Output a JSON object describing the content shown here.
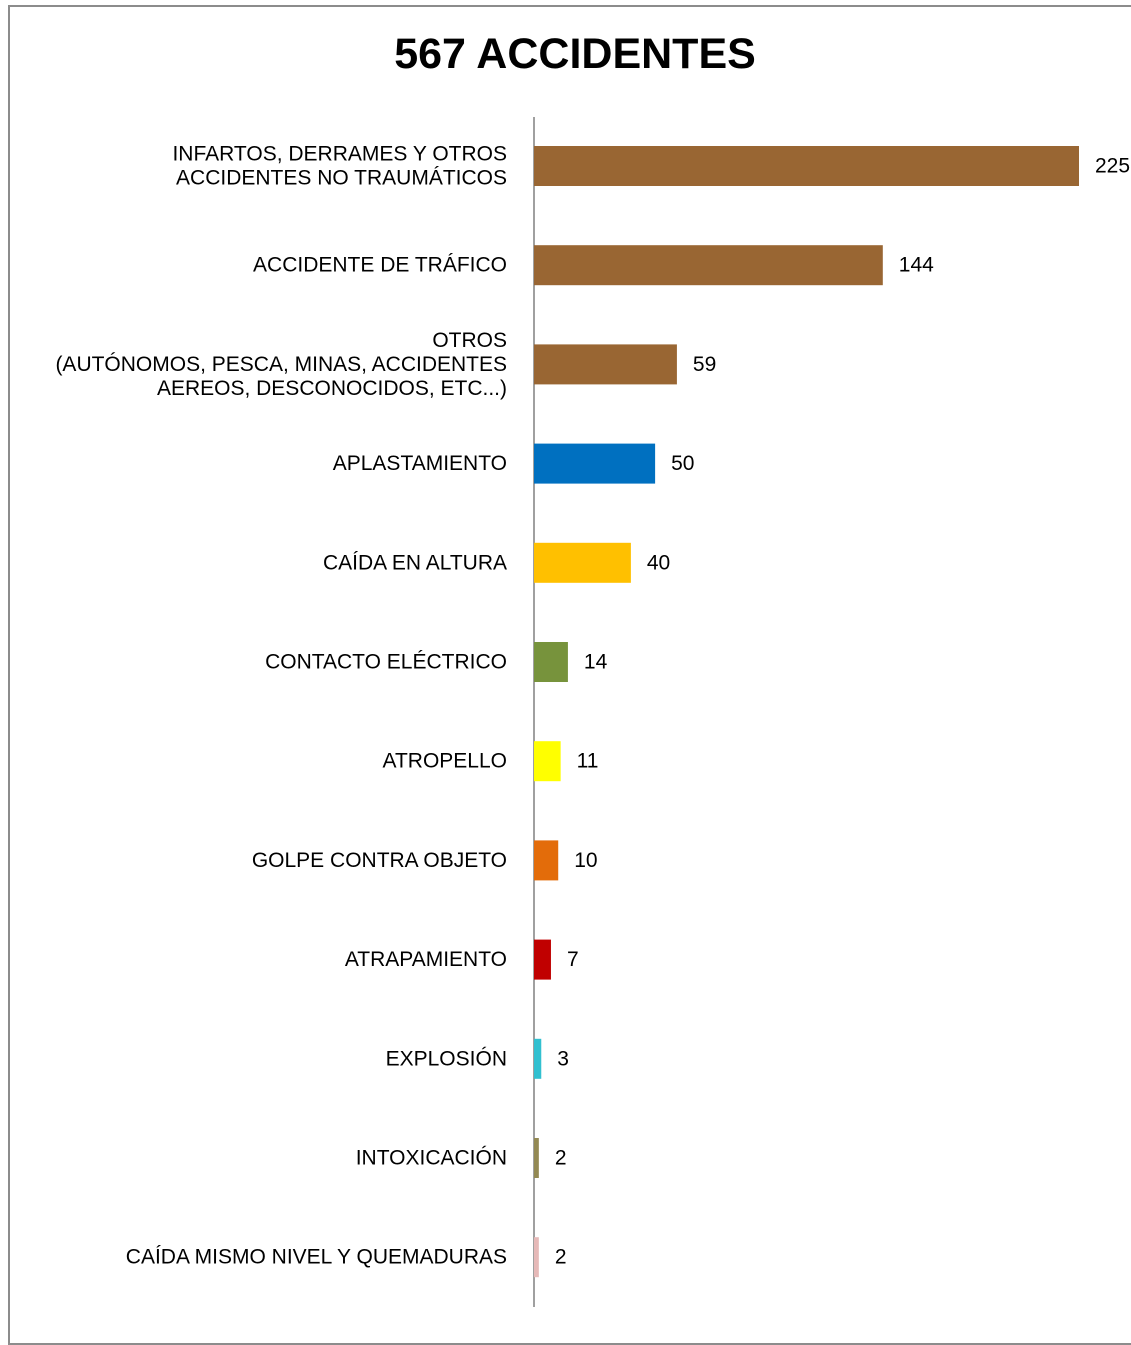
{
  "chart_data": {
    "type": "bar",
    "orientation": "horizontal",
    "title": "567 ACCIDENTES",
    "xlabel": "",
    "ylabel": "",
    "xlim": [
      0,
      225
    ],
    "grid": false,
    "legend": "none",
    "categories": [
      [
        "INFARTOS, DERRAMES Y OTROS",
        "ACCIDENTES NO TRAUMÁTICOS"
      ],
      [
        "ACCIDENTE DE TRÁFICO"
      ],
      [
        "OTROS",
        "(AUTÓNOMOS, PESCA, MINAS, ACCIDENTES",
        "AEREOS, DESCONOCIDOS, ETC...)"
      ],
      [
        "APLASTAMIENTO"
      ],
      [
        "CAÍDA EN ALTURA"
      ],
      [
        "CONTACTO ELÉCTRICO"
      ],
      [
        "ATROPELLO"
      ],
      [
        "GOLPE CONTRA OBJETO"
      ],
      [
        "ATRAPAMIENTO"
      ],
      [
        "EXPLOSIÓN"
      ],
      [
        "INTOXICACIÓN"
      ],
      [
        "CAÍDA MISMO NIVEL Y QUEMADURAS"
      ]
    ],
    "values": [
      225,
      144,
      59,
      50,
      40,
      14,
      11,
      10,
      7,
      3,
      2,
      2
    ],
    "colors": [
      "#996633",
      "#996633",
      "#996633",
      "#0070c0",
      "#ffc000",
      "#77933c",
      "#ffff00",
      "#e36c0a",
      "#c00000",
      "#31c0d0",
      "#938953",
      "#e6b9b8"
    ],
    "axis_color": "#808080"
  }
}
